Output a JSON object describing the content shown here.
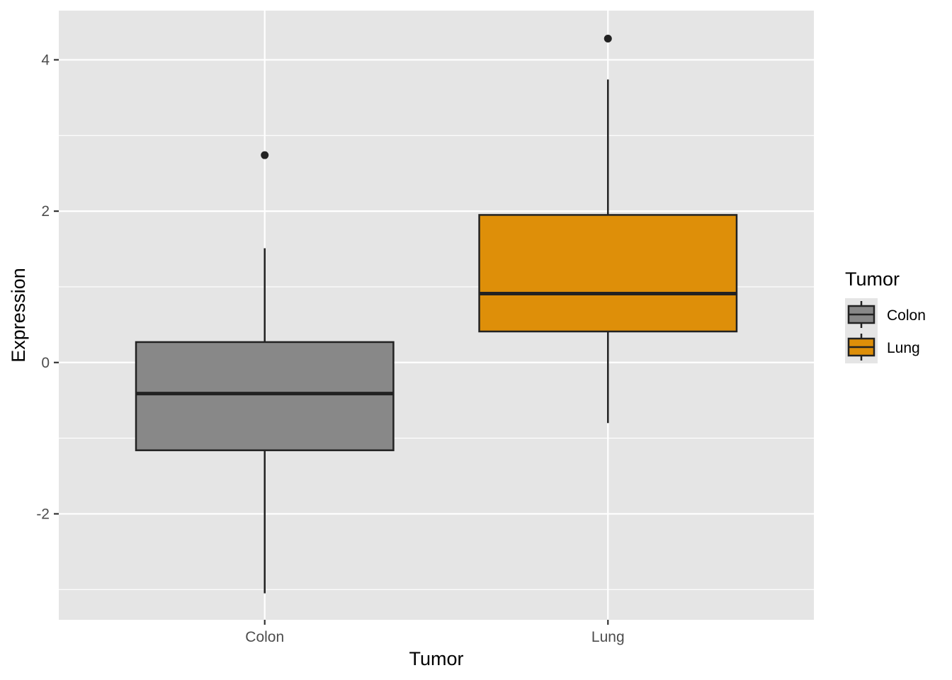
{
  "chart_data": {
    "type": "boxplot",
    "xlabel": "Tumor",
    "ylabel": "Expression",
    "categories": [
      "Colon",
      "Lung"
    ],
    "ylim": [
      -3.4,
      4.65
    ],
    "y_ticks": [
      -2,
      0,
      2,
      4
    ],
    "grid": true,
    "legend": {
      "title": "Tumor",
      "position": "right",
      "items": [
        {
          "label": "Colon",
          "color": "#888888"
        },
        {
          "label": "Lung",
          "color": "#DE8F09"
        }
      ]
    },
    "series": [
      {
        "category": "Colon",
        "color": "#888888",
        "whisker_low": -3.05,
        "q1": -1.16,
        "median": -0.41,
        "q3": 0.27,
        "whisker_high": 1.51,
        "outliers": [
          2.74
        ]
      },
      {
        "category": "Lung",
        "color": "#DE8F09",
        "whisker_low": -0.8,
        "q1": 0.41,
        "median": 0.91,
        "q3": 1.95,
        "whisker_high": 3.74,
        "outliers": [
          4.28
        ]
      }
    ]
  },
  "colors": {
    "panel_background": "#E5E5E5",
    "grid_line": "#FFFFFF",
    "box_outline": "#222222",
    "axis_text": "#4D4D4D"
  }
}
